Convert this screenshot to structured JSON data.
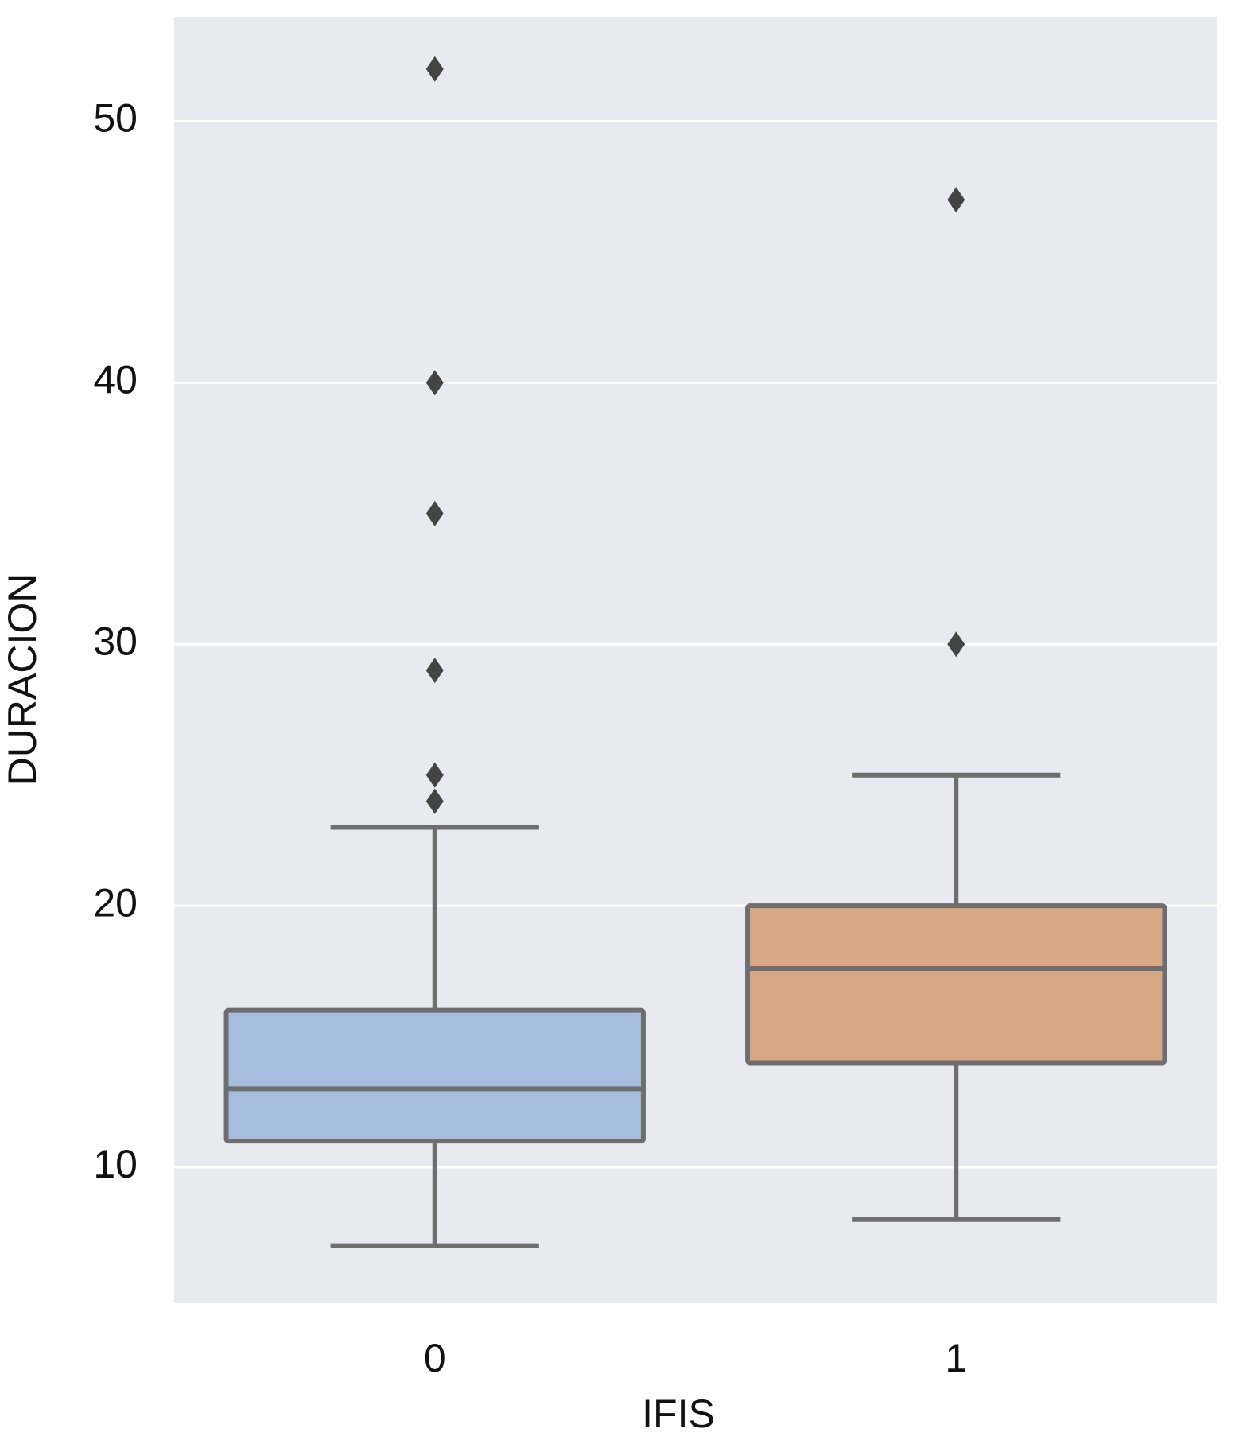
{
  "chart_data": {
    "type": "box",
    "x_label": "IFIS",
    "y_label": "DURACION",
    "categories": [
      "0",
      "1"
    ],
    "series": [
      {
        "name": "0",
        "color": "#a6bddf",
        "min": 7,
        "q1": 11,
        "median": 13,
        "q3": 16,
        "max": 23,
        "outliers": [
          52,
          40,
          35,
          29,
          25,
          24
        ]
      },
      {
        "name": "1",
        "color": "#d8a886",
        "min": 8,
        "q1": 14,
        "median": 17.6,
        "q3": 20,
        "max": 25,
        "outliers": [
          47,
          30
        ]
      }
    ],
    "ylim": [
      4.8,
      54
    ],
    "yticks": [
      10,
      20,
      30,
      40,
      50
    ],
    "grid": true
  }
}
